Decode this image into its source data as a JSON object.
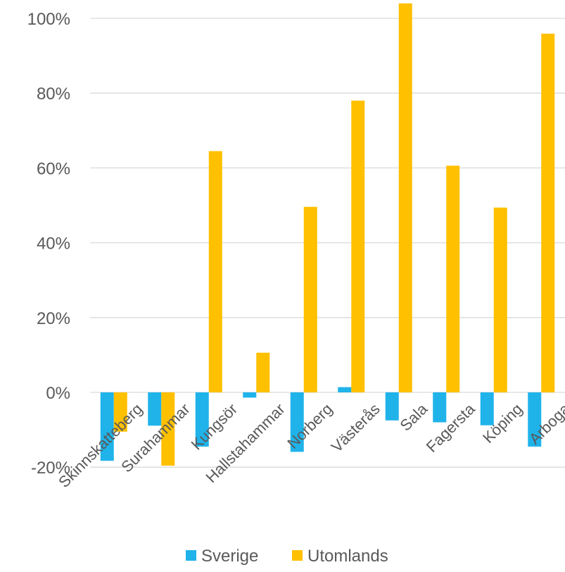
{
  "chart_data": {
    "type": "bar",
    "title": "",
    "xlabel": "",
    "ylabel": "",
    "ylim": [
      -20,
      100
    ],
    "yticks": [
      -20,
      0,
      20,
      40,
      60,
      80,
      100
    ],
    "ytick_labels": [
      "-20%",
      "0%",
      "20%",
      "40%",
      "60%",
      "80%",
      "100%"
    ],
    "grid": true,
    "legend": "bottom",
    "categories": [
      "Skinnskatteberg",
      "Surahammar",
      "Kungsör",
      "Hallstahammar",
      "Norberg",
      "Västerås",
      "Sala",
      "Fagersta",
      "Köping",
      "Arboga"
    ],
    "series": [
      {
        "name": "Sverige",
        "color": "#1fb3ea",
        "values": [
          -18.3,
          -8.9,
          -14.5,
          -1.4,
          -15.9,
          1.4,
          -7.5,
          -8.0,
          -8.8,
          -14.5
        ]
      },
      {
        "name": "Utomlands",
        "color": "#ffc000",
        "values": [
          -10.5,
          -19.6,
          64.5,
          10.6,
          49.6,
          78.0,
          104.0,
          60.6,
          49.4,
          95.9
        ]
      }
    ]
  }
}
